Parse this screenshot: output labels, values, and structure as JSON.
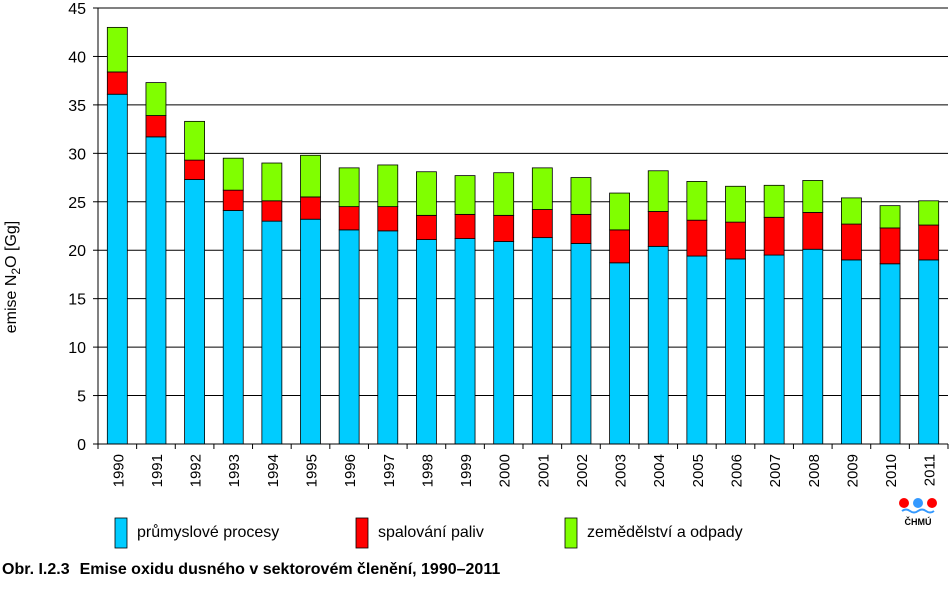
{
  "caption": {
    "number": "Obr. I.2.3",
    "text": "Emise oxidu dusného v sektorovém členění, 1990–2011"
  },
  "logo": {
    "text": "ČHMÚ"
  },
  "colors": {
    "industry": "#00ccff",
    "combustion": "#ff0000",
    "agriculture": "#80ff00"
  },
  "chart_data": {
    "type": "bar",
    "stacked": true,
    "title": "",
    "xlabel": "",
    "ylabel_prefix": "emise N",
    "ylabel_sub": "2",
    "ylabel_suffix": "O [Gg]",
    "ylim": [
      0,
      45
    ],
    "yticks": [
      0,
      5,
      10,
      15,
      20,
      25,
      30,
      35,
      40,
      45
    ],
    "grid": true,
    "legend_position": "bottom",
    "categories": [
      "1990",
      "1991",
      "1992",
      "1993",
      "1994",
      "1995",
      "1996",
      "1997",
      "1998",
      "1999",
      "2000",
      "2001",
      "2002",
      "2003",
      "2004",
      "2005",
      "2006",
      "2007",
      "2008",
      "2009",
      "2010",
      "2011"
    ],
    "series": [
      {
        "name": "průmyslové procesy",
        "color_key": "industry",
        "values": [
          36.1,
          31.7,
          27.3,
          24.1,
          23.0,
          23.2,
          22.1,
          22.0,
          21.1,
          21.2,
          20.9,
          21.3,
          20.7,
          18.7,
          20.4,
          19.4,
          19.1,
          19.5,
          20.1,
          19.0,
          18.6,
          19.0
        ]
      },
      {
        "name": "spalování paliv",
        "color_key": "combustion",
        "values": [
          2.3,
          2.2,
          2.0,
          2.1,
          2.1,
          2.3,
          2.4,
          2.5,
          2.5,
          2.5,
          2.7,
          2.9,
          3.0,
          3.4,
          3.6,
          3.7,
          3.8,
          3.9,
          3.8,
          3.7,
          3.7,
          3.6
        ]
      },
      {
        "name": "zemědělství a odpady",
        "color_key": "agriculture",
        "values": [
          4.6,
          3.4,
          4.0,
          3.3,
          3.9,
          4.3,
          4.0,
          4.3,
          4.5,
          4.0,
          4.4,
          4.3,
          3.8,
          3.8,
          4.2,
          4.0,
          3.7,
          3.3,
          3.3,
          2.7,
          2.3,
          2.5
        ]
      }
    ]
  }
}
